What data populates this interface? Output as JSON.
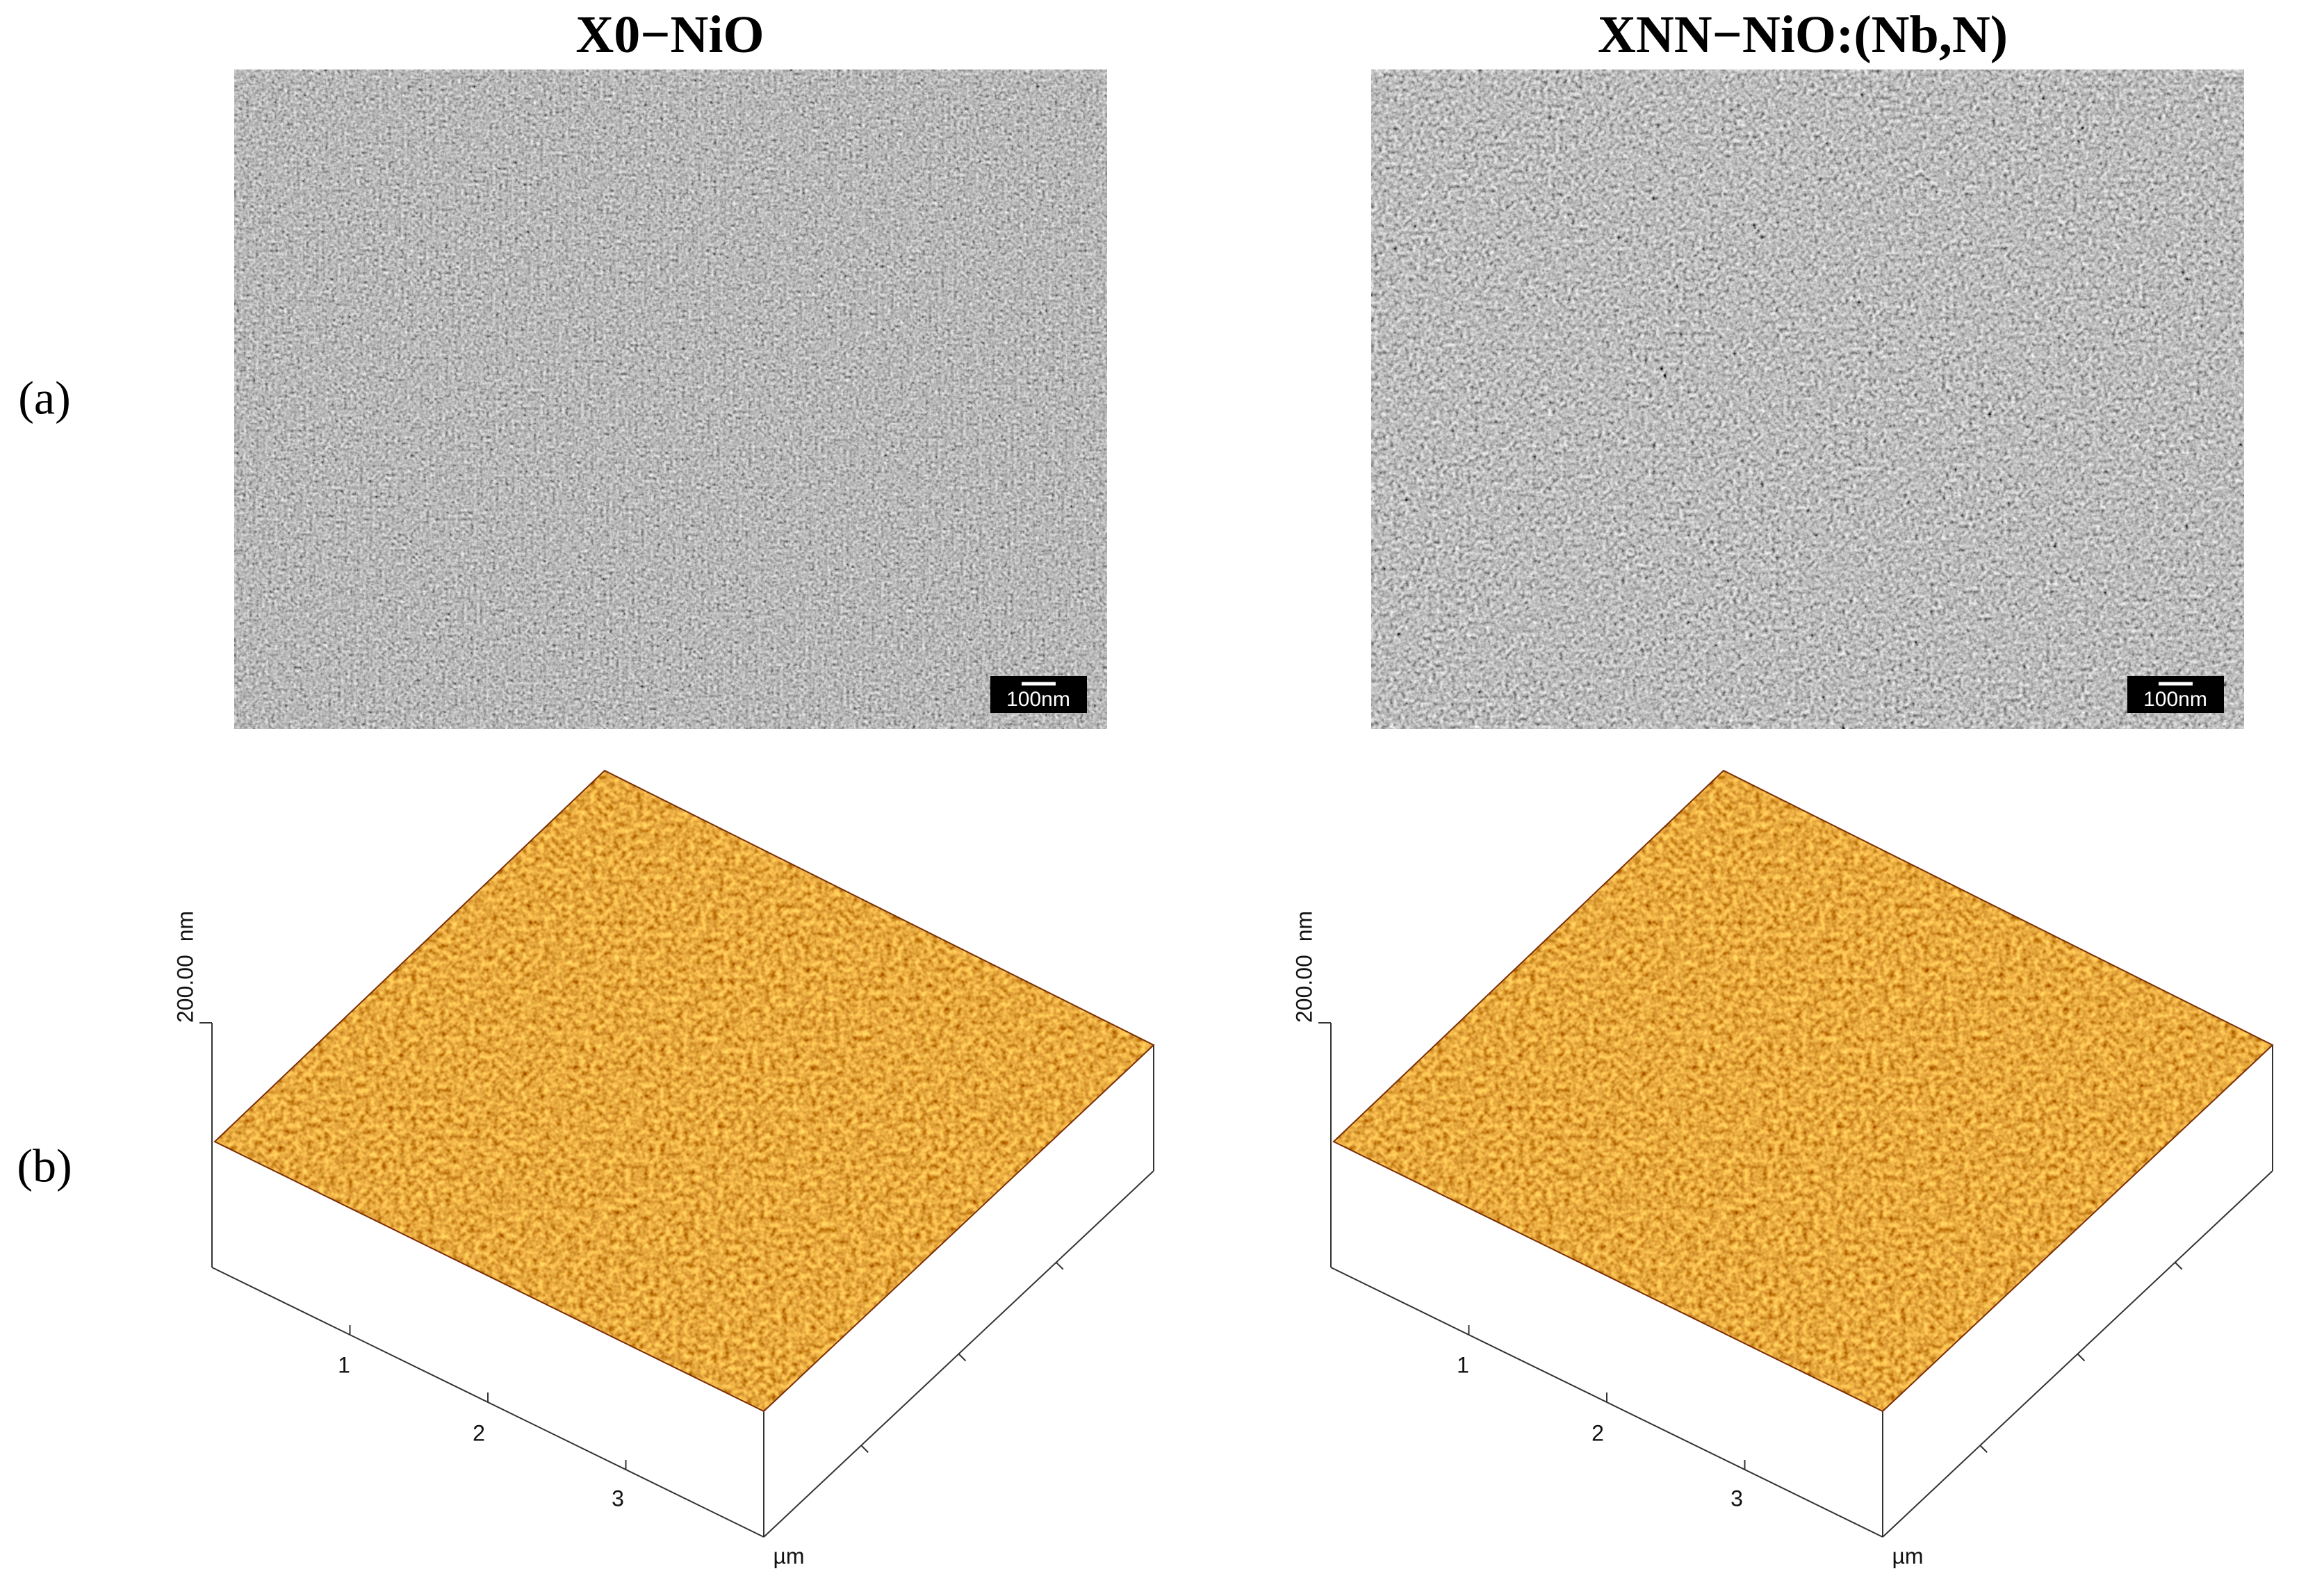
{
  "columns": [
    {
      "title": "X0−NiO",
      "sem_scale_bar": "100nm",
      "afm_z_unit": "nm",
      "afm_z_label": "200.00",
      "afm_xy_unit": "µm",
      "afm_ticks": [
        "1",
        "2",
        "3"
      ]
    },
    {
      "title": "XNN−NiO:(Nb,N)",
      "sem_scale_bar": "100nm",
      "afm_z_unit": "nm",
      "afm_z_label": "200.00",
      "afm_xy_unit": "µm",
      "afm_ticks": [
        "1",
        "2",
        "3"
      ]
    }
  ],
  "rows": [
    {
      "label": "(a)"
    },
    {
      "label": "(b)"
    }
  ]
}
